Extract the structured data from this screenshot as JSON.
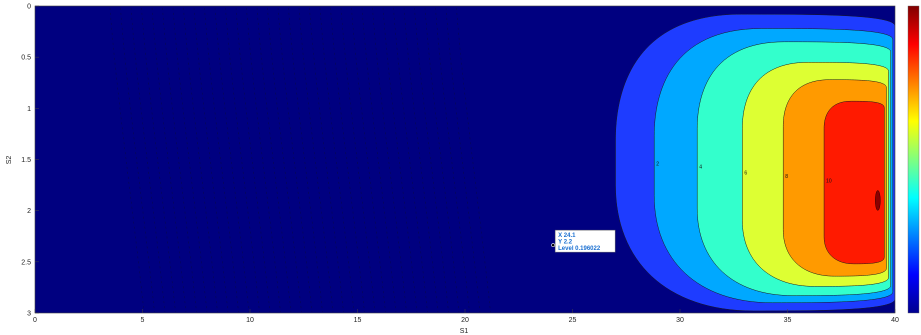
{
  "chart_data": {
    "type": "heatmap",
    "subtype": "filled-contour",
    "xlabel": "S1",
    "ylabel": "S2",
    "xlim": [
      0,
      40
    ],
    "ylim": [
      0,
      3
    ],
    "y_reversed": true,
    "xticks": [
      "0",
      "5",
      "10",
      "15",
      "20",
      "25",
      "30",
      "35",
      "40"
    ],
    "yticks": [
      "0",
      "0.5",
      "1",
      "1.5",
      "2",
      "2.5",
      "3"
    ],
    "grid": false,
    "colorbar": "right",
    "peak": {
      "x": 39.2,
      "y": 1.9
    },
    "levels": [
      {
        "color": "#1e3cff",
        "x_left": 27.0,
        "x_right": 40.0,
        "y_top": 0.08,
        "y_bottom": 2.98,
        "label": ""
      },
      {
        "color": "#00a8ff",
        "x_left": 28.8,
        "x_right": 39.9,
        "y_top": 0.22,
        "y_bottom": 2.9,
        "label": "2"
      },
      {
        "color": "#33ffcc",
        "x_left": 30.8,
        "x_right": 39.8,
        "y_top": 0.35,
        "y_bottom": 2.83,
        "label": "4"
      },
      {
        "color": "#ddff33",
        "x_left": 32.9,
        "x_right": 39.7,
        "y_top": 0.55,
        "y_bottom": 2.74,
        "label": "6"
      },
      {
        "color": "#ff9a00",
        "x_left": 34.8,
        "x_right": 39.6,
        "y_top": 0.72,
        "y_bottom": 2.64,
        "label": "8"
      },
      {
        "color": "#ff1a00",
        "x_left": 36.7,
        "x_right": 39.5,
        "y_top": 0.93,
        "y_bottom": 2.52,
        "label": "10"
      }
    ],
    "datatip": {
      "x": 24.1,
      "y": 2.2,
      "lines": [
        "X 24.1",
        "Y 2.2",
        "Level 0.196022"
      ]
    }
  }
}
